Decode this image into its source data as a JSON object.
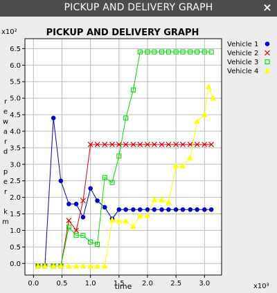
{
  "window": {
    "title": "PICKUP AND DELIVERY GRAPH",
    "close_label": "×"
  },
  "colors": {
    "titlebar_bg": "#4d4d4d",
    "plot_bg": "#ffffff",
    "grid": "#bbbbbb"
  },
  "chart_data": {
    "type": "line",
    "title": "PICKUP AND DELIVERY GRAPH",
    "xlabel": "time",
    "ylabel": "reward per km",
    "x_multiplier_label": "x10³",
    "y_multiplier_label": "x10²",
    "xlim": [
      -0.15,
      3.3
    ],
    "ylim": [
      -0.35,
      6.8
    ],
    "x_ticks": [
      0.0,
      0.5,
      1.0,
      1.5,
      2.0,
      2.5,
      3.0
    ],
    "x_tick_labels": [
      "0.0",
      "0.5",
      "1.0",
      "1.5",
      "2.0",
      "2.5",
      "3.0"
    ],
    "y_ticks": [
      0.0,
      0.5,
      1.0,
      1.5,
      2.0,
      2.5,
      3.0,
      3.5,
      4.0,
      4.5,
      5.0,
      5.5,
      6.0,
      6.5
    ],
    "y_tick_labels": [
      "0.0",
      "0.5",
      "1.0",
      "1.5",
      "2.0",
      "2.5",
      "3.0",
      "3.5",
      "4.0",
      "4.5",
      "5.0",
      "5.5",
      "6.0",
      "6.5"
    ],
    "grid": true,
    "legend_position": "right",
    "series": [
      {
        "name": "Vehicle 1",
        "color": "#0000cc",
        "marker": "circle",
        "x": [
          0.08,
          0.2,
          0.35,
          0.48,
          0.62,
          0.75,
          0.87,
          1.0,
          1.12,
          1.25,
          1.38,
          1.5,
          1.62,
          1.75,
          1.87,
          2.0,
          2.12,
          2.25,
          2.37,
          2.5,
          2.62,
          2.75,
          2.87,
          3.0,
          3.12
        ],
        "y": [
          -0.08,
          -0.08,
          4.4,
          2.5,
          1.8,
          1.8,
          1.4,
          2.27,
          1.9,
          1.7,
          1.35,
          1.63,
          1.63,
          1.63,
          1.63,
          1.63,
          1.63,
          1.63,
          1.63,
          1.63,
          1.63,
          1.63,
          1.63,
          1.63,
          1.63
        ]
      },
      {
        "name": "Vehicle 2",
        "color": "#dd0000",
        "marker": "x",
        "x": [
          0.08,
          0.2,
          0.35,
          0.48,
          0.62,
          0.75,
          0.87,
          1.0,
          1.12,
          1.25,
          1.38,
          1.5,
          1.62,
          1.75,
          1.87,
          2.0,
          2.12,
          2.25,
          2.37,
          2.5,
          2.62,
          2.75,
          2.87,
          3.0,
          3.12
        ],
        "y": [
          -0.08,
          -0.08,
          -0.08,
          -0.08,
          1.3,
          1.0,
          1.9,
          3.6,
          3.6,
          3.6,
          3.6,
          3.6,
          3.6,
          3.6,
          3.6,
          3.6,
          3.6,
          3.6,
          3.6,
          3.6,
          3.6,
          3.6,
          3.6,
          3.6,
          3.6
        ]
      },
      {
        "name": "Vehicle 3",
        "color": "#00dd00",
        "marker": "square",
        "x": [
          0.08,
          0.2,
          0.35,
          0.48,
          0.62,
          0.75,
          0.87,
          1.0,
          1.12,
          1.25,
          1.38,
          1.5,
          1.62,
          1.75,
          1.87,
          2.0,
          2.12,
          2.25,
          2.37,
          2.5,
          2.62,
          2.75,
          2.87,
          3.0,
          3.12
        ],
        "y": [
          -0.08,
          -0.08,
          -0.08,
          -0.08,
          1.1,
          0.85,
          0.85,
          0.65,
          0.58,
          2.6,
          2.45,
          3.25,
          4.4,
          5.25,
          6.4,
          6.4,
          6.4,
          6.4,
          6.4,
          6.4,
          6.4,
          6.4,
          6.4,
          6.4,
          6.4
        ]
      },
      {
        "name": "Vehicle 4",
        "color": "#ffff00",
        "marker": "triangle",
        "x": [
          0.08,
          0.2,
          0.35,
          0.48,
          0.62,
          0.75,
          0.87,
          1.0,
          1.12,
          1.25,
          1.38,
          1.5,
          1.62,
          1.75,
          1.87,
          2.0,
          2.12,
          2.25,
          2.37,
          2.5,
          2.62,
          2.75,
          2.87,
          3.0,
          3.07,
          3.15
        ],
        "y": [
          -0.08,
          -0.08,
          -0.08,
          -0.08,
          -0.08,
          -0.08,
          -0.08,
          -0.08,
          -0.08,
          -0.08,
          1.32,
          1.28,
          1.28,
          1.12,
          1.45,
          1.45,
          1.93,
          1.93,
          1.85,
          2.95,
          2.95,
          3.2,
          4.3,
          4.5,
          5.35,
          5.0
        ]
      }
    ]
  }
}
